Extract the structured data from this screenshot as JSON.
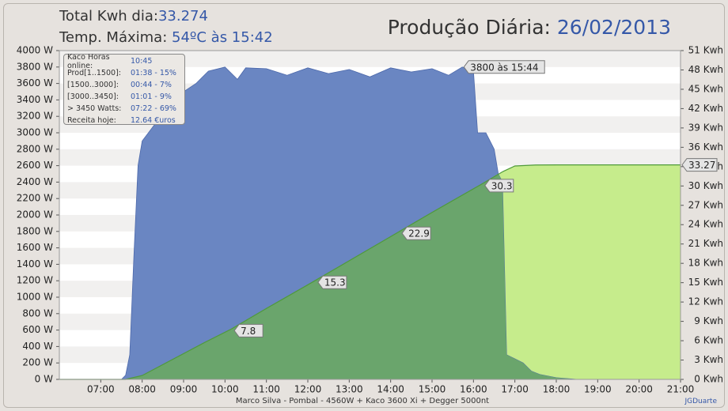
{
  "chart_data": {
    "type": "area",
    "header": {
      "total_label": "Total Kwh dia:",
      "total_value": "33.274",
      "temp_label": "Temp. Máxima:",
      "temp_value": "54ºC às 15:42",
      "title": "Produção Diária:",
      "date": "26/02/2013"
    },
    "info": [
      [
        "Kaco Horas online:",
        "10:45"
      ],
      [
        "Prod[1..1500]:",
        "01:38 - 15%"
      ],
      [
        "[1500..3000]:",
        "00:44 - 7%"
      ],
      [
        "[3000..3450]:",
        "01:01 - 9%"
      ],
      [
        "> 3450 Watts:",
        "07:22 - 69%"
      ],
      [
        "Receita hoje:",
        "12.64 €uros"
      ]
    ],
    "footer": "Marco Silva - Pombal - 4560W + Kaco 3600 Xi + Degger 5000nt",
    "credit": "JGDuarte",
    "xlim": [
      6,
      21
    ],
    "xticks": [
      {
        "value": 7,
        "label": "07:00"
      },
      {
        "value": 8,
        "label": "08:00"
      },
      {
        "value": 9,
        "label": "09:00"
      },
      {
        "value": 10,
        "label": "10:00"
      },
      {
        "value": 11,
        "label": "11:00"
      },
      {
        "value": 12,
        "label": "12:00"
      },
      {
        "value": 13,
        "label": "13:00"
      },
      {
        "value": 14,
        "label": "14:00"
      },
      {
        "value": 15,
        "label": "15:00"
      },
      {
        "value": 16,
        "label": "16:00"
      },
      {
        "value": 17,
        "label": "17:00"
      },
      {
        "value": 18,
        "label": "18:00"
      },
      {
        "value": 19,
        "label": "19:00"
      },
      {
        "value": 20,
        "label": "20:00"
      },
      {
        "value": 21,
        "label": "21:00"
      }
    ],
    "ylim": [
      0,
      4000
    ],
    "yticks": [
      {
        "value": 0,
        "label": "0 W"
      },
      {
        "value": 200,
        "label": "200 W"
      },
      {
        "value": 400,
        "label": "400 W"
      },
      {
        "value": 600,
        "label": "600 W"
      },
      {
        "value": 800,
        "label": "800 W"
      },
      {
        "value": 1000,
        "label": "1000 W"
      },
      {
        "value": 1200,
        "label": "1200 W"
      },
      {
        "value": 1400,
        "label": "1400 W"
      },
      {
        "value": 1600,
        "label": "1600 W"
      },
      {
        "value": 1800,
        "label": "1800 W"
      },
      {
        "value": 2000,
        "label": "2000 W"
      },
      {
        "value": 2200,
        "label": "2200 W"
      },
      {
        "value": 2400,
        "label": "2400 W"
      },
      {
        "value": 2600,
        "label": "2600 W"
      },
      {
        "value": 2800,
        "label": "2800 W"
      },
      {
        "value": 3000,
        "label": "3000 W"
      },
      {
        "value": 3200,
        "label": "3200 W"
      },
      {
        "value": 3400,
        "label": "3400 W"
      },
      {
        "value": 3600,
        "label": "3600 W"
      },
      {
        "value": 3800,
        "label": "3800 W"
      },
      {
        "value": 4000,
        "label": "4000 W"
      }
    ],
    "y2lim": [
      0,
      51
    ],
    "y2ticks": [
      {
        "value": 0,
        "label": "0 Kwh"
      },
      {
        "value": 3,
        "label": "3 Kwh"
      },
      {
        "value": 6,
        "label": "6 Kwh"
      },
      {
        "value": 9,
        "label": "9 Kwh"
      },
      {
        "value": 12,
        "label": "12 Kwh"
      },
      {
        "value": 15,
        "label": "15 Kwh"
      },
      {
        "value": 18,
        "label": "18 Kwh"
      },
      {
        "value": 21,
        "label": "21 Kwh"
      },
      {
        "value": 24,
        "label": "24 Kwh"
      },
      {
        "value": 27,
        "label": "27 Kwh"
      },
      {
        "value": 30,
        "label": "30 Kwh"
      },
      {
        "value": 33,
        "label": "33 Kwh"
      },
      {
        "value": 36,
        "label": "36 Kwh"
      },
      {
        "value": 39,
        "label": "39 Kwh"
      },
      {
        "value": 42,
        "label": "42 Kwh"
      },
      {
        "value": 45,
        "label": "45 Kwh"
      },
      {
        "value": 48,
        "label": "48 Kwh"
      },
      {
        "value": 51,
        "label": "51 Kwh"
      }
    ],
    "grid": true,
    "series": [
      {
        "color": "#6a86c2",
        "x": [
          6,
          7.5,
          7.6,
          7.7,
          7.8,
          7.9,
          8.0,
          8.3,
          8.6,
          9.0,
          9.3,
          9.6,
          10.0,
          10.3,
          10.5,
          11.0,
          11.5,
          12.0,
          12.5,
          13.0,
          13.5,
          14.0,
          14.5,
          15.0,
          15.4,
          15.73,
          16.0,
          16.1,
          16.3,
          16.5,
          16.6,
          16.7,
          16.8,
          17.0,
          17.2,
          17.4,
          17.6,
          18.0,
          18.5,
          21
        ],
        "values": [
          0,
          0,
          50,
          300,
          1500,
          2600,
          2900,
          3100,
          3300,
          3500,
          3600,
          3750,
          3800,
          3650,
          3790,
          3780,
          3700,
          3790,
          3720,
          3770,
          3680,
          3790,
          3740,
          3780,
          3700,
          3800,
          3750,
          3000,
          3000,
          2800,
          2500,
          2400,
          300,
          250,
          200,
          100,
          60,
          20,
          0,
          0
        ]
      },
      {
        "color": "#c6ec8c",
        "overlap_color": "#6aa56c",
        "line_color": "#4f9a3a",
        "axis": "y2",
        "x": [
          6,
          7.6,
          8.0,
          8.5,
          9.0,
          9.5,
          10.15,
          11.0,
          12.17,
          13.0,
          14.2,
          15.0,
          16.2,
          16.7,
          17.0,
          17.5,
          18.0,
          21
        ],
        "values": [
          0,
          0,
          0.6,
          2.3,
          4.0,
          5.7,
          7.8,
          11.0,
          15.3,
          18.4,
          22.9,
          25.9,
          30.3,
          32.2,
          33.1,
          33.25,
          33.27,
          33.27
        ]
      }
    ],
    "energy_labels": [
      {
        "x": 10.15,
        "value": 7.8
      },
      {
        "x": 12.17,
        "value": 15.3
      },
      {
        "x": 14.2,
        "value": 22.9
      },
      {
        "x": 16.2,
        "value": 30.3
      }
    ],
    "end_label": 33.27,
    "peak": {
      "x": 15.73,
      "value": 3800,
      "label": "3800 às 15:44"
    }
  }
}
